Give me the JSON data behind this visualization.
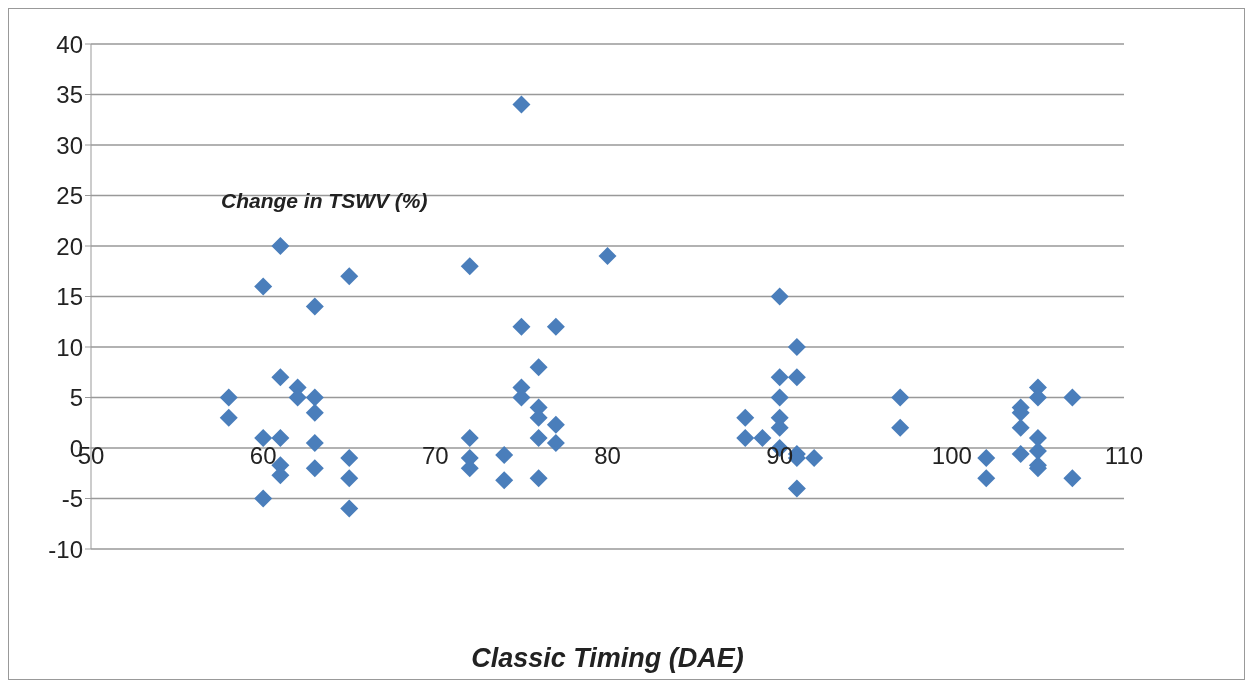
{
  "chart_data": {
    "type": "scatter",
    "ylabel": "Change in TSWV (%)",
    "xlabel": "Classic Timing (DAE)",
    "x": [
      58,
      58,
      60,
      60,
      60,
      61,
      61,
      61,
      61,
      61,
      62,
      62,
      63,
      63,
      63,
      63,
      63,
      65,
      65,
      65,
      65,
      72,
      72,
      72,
      72,
      74,
      74,
      75,
      75,
      75,
      75,
      76,
      76,
      76,
      76,
      76,
      77,
      77,
      77,
      80,
      88,
      88,
      89,
      90,
      90,
      90,
      90,
      90,
      90,
      91,
      91,
      91,
      91,
      91,
      92,
      97,
      97,
      102,
      102,
      104,
      104,
      104,
      104,
      105,
      105,
      105,
      105,
      105,
      105,
      107,
      107
    ],
    "series": [
      {
        "color": "#4a7ebb",
        "values": [
          5,
          3,
          16,
          1,
          -5,
          20,
          7,
          1,
          -1.7,
          -2.7,
          6,
          5,
          14,
          5,
          3.5,
          0.5,
          -2,
          17,
          -1,
          -3,
          -6,
          18,
          1,
          -1,
          -2,
          -0.7,
          -3.2,
          34,
          12,
          6,
          5,
          8,
          4,
          3,
          1,
          -3,
          12,
          2.3,
          0.5,
          19,
          3,
          1,
          1,
          15,
          7,
          5,
          3,
          2,
          0,
          10,
          7,
          -0.6,
          -1,
          -4,
          -1,
          5,
          2,
          -1,
          -3,
          4,
          3.5,
          2,
          -0.6,
          6,
          5,
          1,
          -0.3,
          -1.7,
          -2,
          5,
          -3
        ]
      }
    ],
    "xlim": [
      50,
      110
    ],
    "xticks": [
      50,
      60,
      70,
      80,
      90,
      100,
      110
    ],
    "ylim": [
      -10,
      40
    ],
    "yticks": [
      -10,
      -5,
      0,
      5,
      10,
      15,
      20,
      25,
      30,
      35,
      40
    ],
    "grid": "y",
    "marker": "diamond"
  }
}
